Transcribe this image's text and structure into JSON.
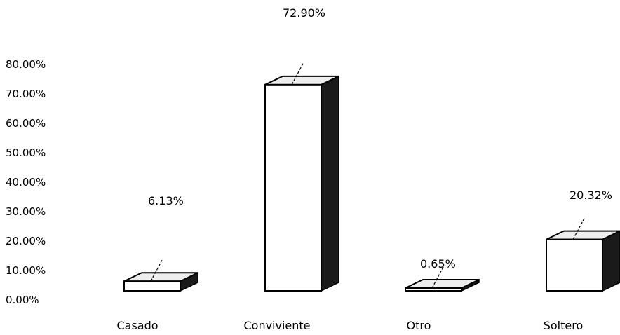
{
  "chart_data": {
    "type": "bar",
    "style": "3d-column",
    "categories": [
      "Casado",
      "Conviviente",
      "Otro",
      "Soltero"
    ],
    "values": [
      6.13,
      72.9,
      0.65,
      20.32
    ],
    "data_labels": [
      "6.13%",
      "72.90%",
      "0.65%",
      "20.32%"
    ],
    "y_tick_labels": [
      "0.00%",
      "10.00%",
      "20.00%",
      "30.00%",
      "40.00%",
      "50.00%",
      "60.00%",
      "70.00%",
      "80.00%"
    ],
    "ylim": [
      0,
      80
    ],
    "grid": false,
    "legend": "none",
    "colors": {
      "front": "#ffffff",
      "side": "#1a1a1a",
      "top": "#eeeeee",
      "outline": "#000000"
    }
  }
}
